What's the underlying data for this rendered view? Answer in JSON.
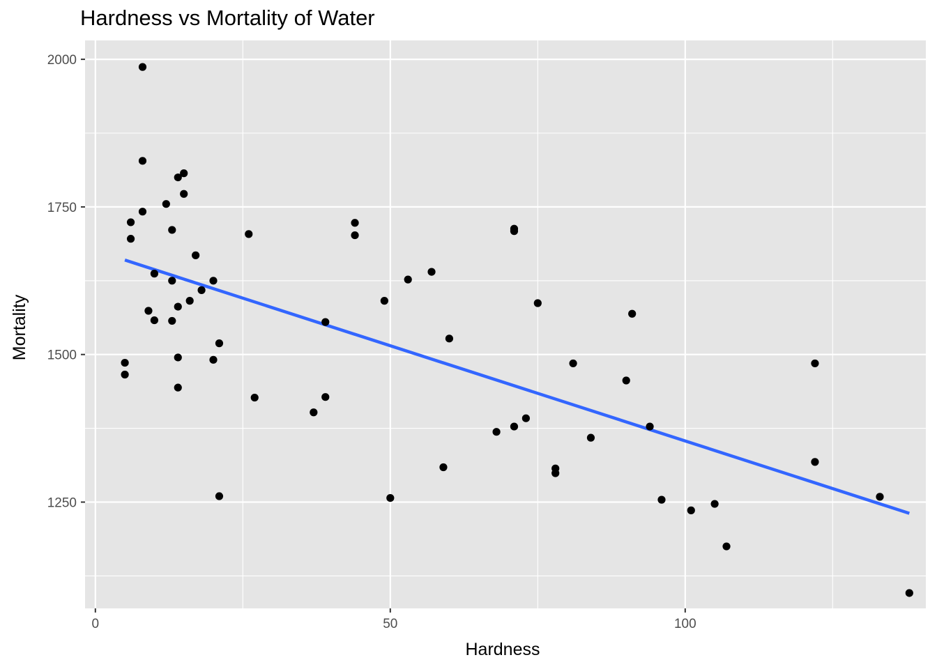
{
  "chart_data": {
    "type": "scatter",
    "title": "Hardness vs Mortality of Water",
    "xlabel": "Hardness",
    "ylabel": "Mortality",
    "xlim": [
      -1.75,
      140.8
    ],
    "ylim": [
      1070,
      2032
    ],
    "x_ticks": [
      0,
      50,
      100
    ],
    "x_minor_ticks": [
      25,
      75,
      125
    ],
    "y_ticks": [
      1250,
      1500,
      1750,
      2000
    ],
    "y_minor_ticks": [
      1125,
      1375,
      1625,
      1875
    ],
    "grid": true,
    "legend": "none",
    "colors": {
      "panel": "#e5e5e5",
      "grid": "#ffffff",
      "point": "#000000",
      "trend": "#3366ff"
    },
    "points": [
      {
        "x": 8,
        "y": 1987
      },
      {
        "x": 8,
        "y": 1828
      },
      {
        "x": 14,
        "y": 1800
      },
      {
        "x": 15,
        "y": 1807
      },
      {
        "x": 15,
        "y": 1772
      },
      {
        "x": 12,
        "y": 1755
      },
      {
        "x": 8,
        "y": 1742
      },
      {
        "x": 6,
        "y": 1724
      },
      {
        "x": 13,
        "y": 1711
      },
      {
        "x": 6,
        "y": 1696
      },
      {
        "x": 17,
        "y": 1668
      },
      {
        "x": 10,
        "y": 1637
      },
      {
        "x": 13,
        "y": 1625
      },
      {
        "x": 20,
        "y": 1625
      },
      {
        "x": 18,
        "y": 1609
      },
      {
        "x": 16,
        "y": 1591
      },
      {
        "x": 14,
        "y": 1581
      },
      {
        "x": 9,
        "y": 1574
      },
      {
        "x": 10,
        "y": 1558
      },
      {
        "x": 13,
        "y": 1557
      },
      {
        "x": 21,
        "y": 1519
      },
      {
        "x": 14,
        "y": 1495
      },
      {
        "x": 20,
        "y": 1491
      },
      {
        "x": 5,
        "y": 1486
      },
      {
        "x": 5,
        "y": 1466
      },
      {
        "x": 14,
        "y": 1444
      },
      {
        "x": 21,
        "y": 1260
      },
      {
        "x": 26,
        "y": 1704
      },
      {
        "x": 27,
        "y": 1427
      },
      {
        "x": 37,
        "y": 1402
      },
      {
        "x": 39,
        "y": 1555
      },
      {
        "x": 39,
        "y": 1428
      },
      {
        "x": 44,
        "y": 1723
      },
      {
        "x": 44,
        "y": 1702
      },
      {
        "x": 49,
        "y": 1591
      },
      {
        "x": 50,
        "y": 1257
      },
      {
        "x": 53,
        "y": 1627
      },
      {
        "x": 57,
        "y": 1640
      },
      {
        "x": 59,
        "y": 1309
      },
      {
        "x": 60,
        "y": 1527
      },
      {
        "x": 68,
        "y": 1369
      },
      {
        "x": 71,
        "y": 1713
      },
      {
        "x": 71,
        "y": 1709
      },
      {
        "x": 71,
        "y": 1378
      },
      {
        "x": 73,
        "y": 1392
      },
      {
        "x": 75,
        "y": 1587
      },
      {
        "x": 78,
        "y": 1307
      },
      {
        "x": 78,
        "y": 1299
      },
      {
        "x": 81,
        "y": 1485
      },
      {
        "x": 84,
        "y": 1359
      },
      {
        "x": 90,
        "y": 1456
      },
      {
        "x": 91,
        "y": 1569
      },
      {
        "x": 94,
        "y": 1378
      },
      {
        "x": 96,
        "y": 1254
      },
      {
        "x": 101,
        "y": 1236
      },
      {
        "x": 105,
        "y": 1247
      },
      {
        "x": 107,
        "y": 1175
      },
      {
        "x": 122,
        "y": 1485
      },
      {
        "x": 122,
        "y": 1318
      },
      {
        "x": 133,
        "y": 1259
      },
      {
        "x": 138,
        "y": 1096
      }
    ],
    "trend_line": {
      "x": [
        5,
        138
      ],
      "y": [
        1660,
        1231
      ]
    }
  }
}
